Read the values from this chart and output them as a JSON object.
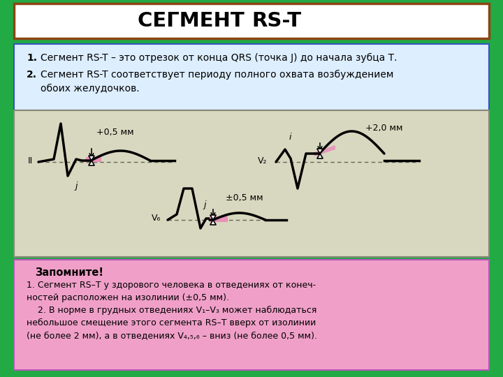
{
  "bg_color": "#22AA44",
  "title_text_cyr": "СЕГМЕНТ ",
  "title_text_lat": "RS-T",
  "title_bg": "#FFFFFF",
  "title_border": "#8B4513",
  "bullet1": "Сегмент RS-T – это отрезок от конца QRS (точка J) до начала зубца Т.",
  "bullet2a": "Сегмент RS-T соответствует периоду полного охвата возбуждением",
  "bullet2b": "   обоих желудочков.",
  "bullet_bg": "#DDEEFF",
  "bullet_border": "#3355BB",
  "ecg_bg": "#D8D8C0",
  "ecg_border": "#888877",
  "memo_bg": "#F0A0C8",
  "memo_border": "#BB55BB",
  "memo_title": "Запомните!",
  "memo_l1": "1. Сегмент RS–T у здорового человека в отведениях от конеч-",
  "memo_l2": "ностей расположен на изолинии (±0,5 мм).",
  "memo_l3": "    2. В норме в грудных отведениях V₁–V₃ может наблюдаться",
  "memo_l4": "небольшое смещение этого сегмента RS–T вверх от изолинии",
  "memo_l5": "(не более 2 мм), а в отведениях V₄,₅,₆ – вниз (не более 0,5 мм).",
  "pink": "#E890B8",
  "arrow_color": "#111111"
}
